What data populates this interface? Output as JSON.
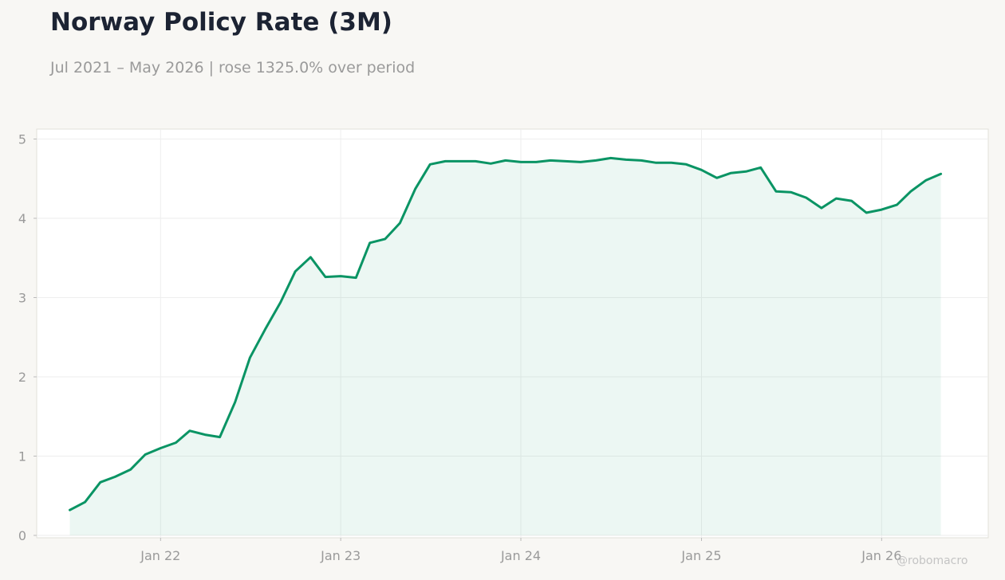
{
  "header": {
    "title": "Norway Policy Rate (3M)",
    "subtitle": "Jul 2021 – May 2026 | rose 1325.0% over period"
  },
  "watermark": "@robomacro",
  "colors": {
    "line": "#0a9464",
    "fill": "#0a9464",
    "grid": "#eeeeee"
  },
  "chart_data": {
    "type": "area",
    "title": "Norway Policy Rate (3M)",
    "xlabel": "",
    "ylabel": "",
    "ylim": [
      0,
      5
    ],
    "xlim": [
      "2021-04-25",
      "2026-08-05"
    ],
    "yticks": [
      0,
      1,
      2,
      3,
      4,
      5
    ],
    "xticks": [
      {
        "date": "2022-01-01",
        "label": "Jan 22"
      },
      {
        "date": "2023-01-01",
        "label": "Jan 23"
      },
      {
        "date": "2024-01-01",
        "label": "Jan 24"
      },
      {
        "date": "2025-01-01",
        "label": "Jan 25"
      },
      {
        "date": "2026-01-01",
        "label": "Jan 26"
      }
    ],
    "grid": true,
    "series": [
      {
        "x": [
          "2021-07",
          "2021-08",
          "2021-09",
          "2021-10",
          "2021-11",
          "2021-12",
          "2022-01",
          "2022-02",
          "2022-03",
          "2022-04",
          "2022-05",
          "2022-06",
          "2022-07",
          "2022-08",
          "2022-09",
          "2022-10",
          "2022-11",
          "2022-12",
          "2023-01",
          "2023-02",
          "2023-03",
          "2023-04",
          "2023-05",
          "2023-06",
          "2023-07",
          "2023-08",
          "2023-09",
          "2023-10",
          "2023-11",
          "2023-12",
          "2024-01",
          "2024-02",
          "2024-03",
          "2024-04",
          "2024-05",
          "2024-06",
          "2024-07",
          "2024-08",
          "2024-09",
          "2024-10",
          "2024-11",
          "2024-12",
          "2025-01",
          "2025-02",
          "2025-03",
          "2025-04",
          "2025-05",
          "2025-06",
          "2025-07",
          "2025-08",
          "2025-09",
          "2025-10",
          "2025-11",
          "2025-12",
          "2026-01",
          "2026-02",
          "2026-03",
          "2026-04",
          "2026-05"
        ],
        "values": [
          0.32,
          0.42,
          0.67,
          0.74,
          0.83,
          1.02,
          1.1,
          1.17,
          1.32,
          1.27,
          1.24,
          1.68,
          2.24,
          2.6,
          2.94,
          3.33,
          3.51,
          3.26,
          3.27,
          3.25,
          3.69,
          3.74,
          3.94,
          4.37,
          4.68,
          4.72,
          4.72,
          4.72,
          4.69,
          4.73,
          4.71,
          4.71,
          4.73,
          4.72,
          4.71,
          4.73,
          4.76,
          4.74,
          4.73,
          4.7,
          4.7,
          4.68,
          4.61,
          4.51,
          4.57,
          4.59,
          4.64,
          4.34,
          4.33,
          4.26,
          4.13,
          4.25,
          4.22,
          4.07,
          4.11,
          4.17,
          4.34,
          4.48,
          4.56
        ]
      }
    ]
  }
}
